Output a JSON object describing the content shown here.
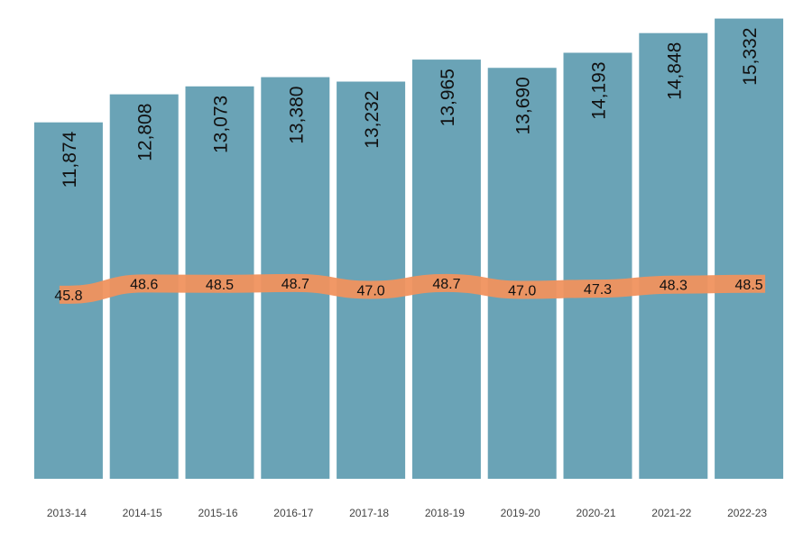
{
  "chart_data": {
    "type": "bar",
    "title": "",
    "xlabel": "",
    "ylabel": "",
    "categories": [
      "2013-14",
      "2014-15",
      "2015-16",
      "2016-17",
      "2017-18",
      "2018-19",
      "2019-20",
      "2020-21",
      "2021-22",
      "2022-23"
    ],
    "series": [
      {
        "type": "bar",
        "values": [
          11874,
          12808,
          13073,
          13380,
          13232,
          13965,
          13690,
          14193,
          14848,
          15332
        ],
        "labels": [
          "11,874",
          "12,808",
          "13,073",
          "13,380",
          "13,232",
          "13,965",
          "13,690",
          "14,193",
          "14,848",
          "15,332"
        ],
        "color": "#6aa3b6"
      },
      {
        "type": "line",
        "values": [
          45.8,
          48.6,
          48.5,
          48.7,
          47.0,
          48.7,
          47.0,
          47.3,
          48.3,
          48.5
        ],
        "labels": [
          "45.8",
          "48.6",
          "48.5",
          "48.7",
          "47.0",
          "48.7",
          "47.0",
          "47.3",
          "48.3",
          "48.5"
        ],
        "color": "#f0925e"
      }
    ],
    "ylim": [
      0,
      15800
    ],
    "line_ylim": [
      0,
      118
    ],
    "grid": false,
    "legend": "none"
  }
}
